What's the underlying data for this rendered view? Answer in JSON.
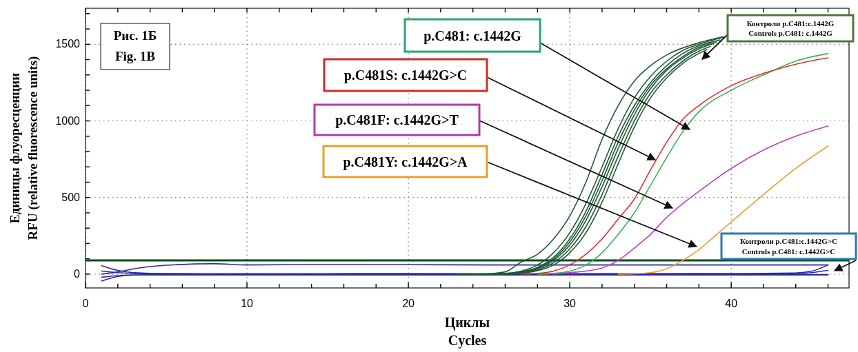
{
  "chart_data": {
    "type": "line",
    "title": "Рис. 1Б",
    "subtitle": "Fig. 1B",
    "xlabel": "Циклы\nCycles",
    "ylabel": "Единицы флуоресценции\nRFU (relative fluorescence units)",
    "xlim": [
      0,
      47.3
    ],
    "ylim": [
      -90,
      1735
    ],
    "xticks": [
      0,
      {
        "value": 2,
        "label": null
      },
      {
        "value": 4,
        "label": null
      },
      {
        "value": 6,
        "label": null
      },
      {
        "value": 8,
        "label": null
      },
      10,
      {
        "value": 12,
        "label": null
      },
      {
        "value": 14,
        "label": null
      },
      {
        "value": 16,
        "label": null
      },
      {
        "value": 18,
        "label": null
      },
      20,
      {
        "value": 22,
        "label": null
      },
      {
        "value": 24,
        "label": null
      },
      {
        "value": 26,
        "label": null
      },
      {
        "value": 28,
        "label": null
      },
      30,
      {
        "value": 32,
        "label": null
      },
      {
        "value": 34,
        "label": null
      },
      {
        "value": 36,
        "label": null
      },
      {
        "value": 38,
        "label": null
      },
      40,
      {
        "value": 42,
        "label": null
      },
      {
        "value": 44,
        "label": null
      },
      {
        "value": 46,
        "label": null
      }
    ],
    "yticks": [
      0,
      {
        "value": 100,
        "label": null
      },
      {
        "value": 200,
        "label": null
      },
      {
        "value": 300,
        "label": null
      },
      {
        "value": 400,
        "label": null
      },
      500,
      {
        "value": 600,
        "label": null
      },
      {
        "value": 700,
        "label": null
      },
      {
        "value": 800,
        "label": null
      },
      {
        "value": 900,
        "label": null
      },
      1000,
      {
        "value": 1100,
        "label": null
      },
      {
        "value": 1200,
        "label": null
      },
      {
        "value": 1300,
        "label": null
      },
      {
        "value": 1400,
        "label": null
      },
      1500,
      {
        "value": 1600,
        "label": null
      },
      {
        "value": 1700,
        "label": null
      }
    ],
    "grid": true,
    "ref_lines": [
      {
        "axis": "y",
        "value": 90,
        "color": "#0a4a1a"
      }
    ],
    "series": [
      {
        "color": "#2a2aa0",
        "x": [
          1,
          2,
          3,
          5,
          10,
          20,
          30,
          40,
          46
        ],
        "values": [
          -45,
          -15,
          -5,
          -3,
          -2,
          -3,
          -2,
          -3,
          -3
        ]
      },
      {
        "color": "#2a2aa0",
        "x": [
          1,
          2,
          3,
          5,
          10,
          20,
          30,
          40,
          44,
          45,
          46
        ],
        "values": [
          55,
          25,
          10,
          4,
          3,
          4,
          3,
          4,
          8,
          20,
          60
        ]
      },
      {
        "color": "#2a2aa0",
        "x": [
          1,
          2,
          3,
          5,
          8,
          10,
          15,
          20,
          25,
          30,
          35,
          40,
          46
        ],
        "values": [
          0,
          15,
          35,
          58,
          68,
          60,
          63,
          62,
          60,
          60,
          60,
          60,
          60
        ]
      },
      {
        "color": "#2a2aa0",
        "x": [
          1,
          2,
          3,
          5,
          10,
          20,
          30,
          40,
          44,
          46
        ],
        "values": [
          20,
          10,
          5,
          1,
          0,
          1,
          0,
          1,
          3,
          25
        ]
      },
      {
        "color": "#2a2aa0",
        "x": [
          1,
          2,
          3,
          5,
          10,
          20,
          30,
          40,
          46
        ],
        "values": [
          -20,
          -10,
          -6,
          -6,
          -5,
          -6,
          -5,
          -6,
          -6
        ]
      },
      {
        "color": "#1e5a32",
        "x": [
          24,
          25,
          26,
          27,
          28,
          29,
          30,
          31,
          32,
          33,
          34,
          35,
          36,
          38,
          39.5
        ],
        "values": [
          0,
          3,
          15,
          80,
          130,
          230,
          380,
          600,
          880,
          1100,
          1260,
          1360,
          1430,
          1510,
          1550
        ]
      },
      {
        "color": "#1e5a32",
        "x": [
          25,
          26,
          27,
          28,
          29,
          30,
          31,
          32,
          33,
          34,
          35,
          36,
          37,
          38,
          39.5
        ],
        "values": [
          0,
          5,
          20,
          60,
          140,
          270,
          460,
          700,
          950,
          1150,
          1290,
          1390,
          1460,
          1500,
          1545
        ]
      },
      {
        "color": "#1e5a32",
        "x": [
          24.6,
          26,
          27,
          28,
          29,
          30,
          31,
          32,
          33,
          34,
          35,
          36,
          37,
          38,
          39.3
        ],
        "values": [
          0,
          3,
          15,
          45,
          110,
          230,
          410,
          650,
          900,
          1100,
          1250,
          1360,
          1440,
          1490,
          1528
        ]
      },
      {
        "color": "#1e5a32",
        "x": [
          24.2,
          26,
          27,
          28,
          29,
          30,
          31,
          32,
          33,
          34,
          35,
          36,
          37,
          38,
          39.1
        ],
        "values": [
          0,
          2,
          12,
          40,
          100,
          210,
          380,
          610,
          860,
          1070,
          1230,
          1340,
          1420,
          1480,
          1515
        ]
      },
      {
        "color": "#1e5a32",
        "x": [
          23.8,
          26,
          27,
          28,
          29,
          30,
          31,
          32,
          33,
          34,
          35,
          36,
          37,
          38,
          38.9
        ],
        "values": [
          0,
          2,
          10,
          35,
          90,
          190,
          350,
          570,
          820,
          1040,
          1210,
          1330,
          1410,
          1470,
          1505
        ]
      },
      {
        "color": "#1e5a32",
        "x": [
          23.4,
          26,
          27,
          28,
          29,
          30,
          31,
          32,
          33,
          34,
          35,
          36,
          37,
          38,
          38.7
        ],
        "values": [
          0,
          1,
          8,
          28,
          75,
          165,
          310,
          520,
          770,
          1000,
          1180,
          1300,
          1390,
          1455,
          1485
        ]
      },
      {
        "color": "#1e5a32",
        "x": [
          23,
          26,
          27,
          28,
          29,
          30,
          31,
          32,
          33,
          34,
          35,
          36,
          37,
          38,
          38.5
        ],
        "values": [
          0,
          1,
          6,
          22,
          60,
          140,
          270,
          470,
          720,
          960,
          1150,
          1280,
          1375,
          1440,
          1465
        ]
      },
      {
        "color": "#3cb34a",
        "x": [
          28,
          29,
          30,
          31,
          32,
          33,
          34,
          35,
          36,
          37,
          38,
          40,
          42,
          44,
          46
        ],
        "values": [
          0,
          5,
          20,
          60,
          140,
          260,
          400,
          580,
          760,
          930,
          1060,
          1200,
          1300,
          1390,
          1440
        ]
      },
      {
        "color": "#e0302a",
        "x": [
          27,
          28,
          29,
          30,
          31,
          32,
          33,
          34,
          35,
          36,
          37,
          38,
          40,
          42,
          44,
          46
        ],
        "values": [
          0,
          5,
          20,
          60,
          130,
          230,
          360,
          490,
          680,
          860,
          1010,
          1100,
          1230,
          1310,
          1370,
          1411
        ]
      },
      {
        "color": "#c040c0",
        "x": [
          29,
          30,
          31,
          32,
          33,
          34,
          35,
          36,
          37,
          38,
          40,
          42,
          44,
          46
        ],
        "values": [
          0,
          10,
          20,
          40,
          90,
          170,
          260,
          370,
          460,
          540,
          690,
          810,
          900,
          966
        ]
      },
      {
        "color": "#e8a030",
        "x": [
          33,
          34,
          35,
          36,
          37,
          38,
          39,
          40,
          42,
          44,
          46
        ],
        "values": [
          0,
          2,
          10,
          35,
          90,
          160,
          250,
          340,
          520,
          690,
          836
        ]
      }
    ],
    "annotations": [
      "p.C481: c.1442G",
      "p.C481S: c.1442G>C",
      "p.C481F: c.1442G>T",
      "p.C481Y: c.1442G>A",
      "Контроли p.C481:c.1442G\nControls p.C481: c.1442G",
      "Контроли p.C481:c.1442G>C\nControls p.C481: c.1442G>C"
    ]
  }
}
